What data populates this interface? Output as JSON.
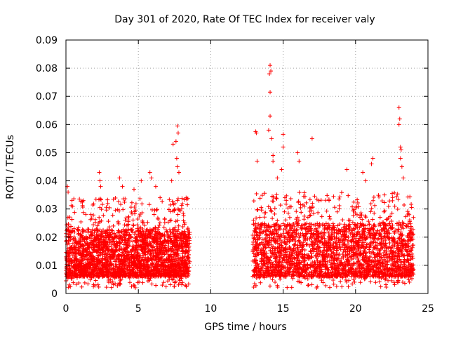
{
  "chart_data": {
    "type": "scatter",
    "title": "Day 301 of 2020, Rate Of TEC Index for receiver valy",
    "xlabel": "GPS time / hours",
    "ylabel": "ROTI / TECUs",
    "xlim": [
      0,
      25
    ],
    "ylim": [
      0,
      0.09
    ],
    "grid": true,
    "marker": "+",
    "color": "#ff0000",
    "x_ticks": [
      0,
      5,
      10,
      15,
      20,
      25
    ],
    "x_tick_labels": [
      "0",
      "5",
      "10",
      "15",
      "20",
      "25"
    ],
    "y_ticks": [
      0,
      0.01,
      0.02,
      0.03,
      0.04,
      0.05,
      0.06,
      0.07,
      0.08,
      0.09
    ],
    "y_tick_labels": [
      "0",
      "0.01",
      "0.02",
      "0.03",
      "0.04",
      "0.05",
      "0.06",
      "0.07",
      "0.08",
      "0.09"
    ],
    "data_gap_hours": [
      8.6,
      12.9
    ],
    "segments": [
      {
        "x_start": 0.0,
        "x_end": 8.55,
        "typical_low": 0.006,
        "typical_high": 0.022
      },
      {
        "x_start": 12.9,
        "x_end": 24.0,
        "typical_low": 0.006,
        "typical_high": 0.024
      }
    ],
    "notable_points": [
      {
        "x": 0.1,
        "y": 0.038
      },
      {
        "x": 0.15,
        "y": 0.036
      },
      {
        "x": 1.2,
        "y": 0.033
      },
      {
        "x": 2.3,
        "y": 0.043
      },
      {
        "x": 2.35,
        "y": 0.04
      },
      {
        "x": 2.4,
        "y": 0.038
      },
      {
        "x": 3.7,
        "y": 0.041
      },
      {
        "x": 3.9,
        "y": 0.038
      },
      {
        "x": 4.7,
        "y": 0.037
      },
      {
        "x": 5.2,
        "y": 0.04
      },
      {
        "x": 5.8,
        "y": 0.043
      },
      {
        "x": 5.9,
        "y": 0.041
      },
      {
        "x": 6.2,
        "y": 0.038
      },
      {
        "x": 6.5,
        "y": 0.034
      },
      {
        "x": 7.3,
        "y": 0.04
      },
      {
        "x": 7.4,
        "y": 0.053
      },
      {
        "x": 7.6,
        "y": 0.054
      },
      {
        "x": 7.7,
        "y": 0.0595
      },
      {
        "x": 7.75,
        "y": 0.057
      },
      {
        "x": 7.65,
        "y": 0.048
      },
      {
        "x": 7.7,
        "y": 0.045
      },
      {
        "x": 7.8,
        "y": 0.043
      },
      {
        "x": 8.3,
        "y": 0.034
      },
      {
        "x": 13.1,
        "y": 0.0575
      },
      {
        "x": 13.15,
        "y": 0.057
      },
      {
        "x": 13.2,
        "y": 0.047
      },
      {
        "x": 14.1,
        "y": 0.081
      },
      {
        "x": 14.15,
        "y": 0.079
      },
      {
        "x": 14.05,
        "y": 0.078
      },
      {
        "x": 14.1,
        "y": 0.0715
      },
      {
        "x": 14.1,
        "y": 0.063
      },
      {
        "x": 14.0,
        "y": 0.058
      },
      {
        "x": 14.2,
        "y": 0.055
      },
      {
        "x": 14.3,
        "y": 0.049
      },
      {
        "x": 14.3,
        "y": 0.047
      },
      {
        "x": 14.6,
        "y": 0.041
      },
      {
        "x": 14.9,
        "y": 0.044
      },
      {
        "x": 15.0,
        "y": 0.052
      },
      {
        "x": 15.0,
        "y": 0.0565
      },
      {
        "x": 16.0,
        "y": 0.05
      },
      {
        "x": 16.1,
        "y": 0.047
      },
      {
        "x": 17.0,
        "y": 0.055
      },
      {
        "x": 19.4,
        "y": 0.044
      },
      {
        "x": 20.5,
        "y": 0.043
      },
      {
        "x": 20.7,
        "y": 0.04
      },
      {
        "x": 21.2,
        "y": 0.048
      },
      {
        "x": 21.1,
        "y": 0.046
      },
      {
        "x": 22.0,
        "y": 0.035
      },
      {
        "x": 23.0,
        "y": 0.066
      },
      {
        "x": 23.05,
        "y": 0.062
      },
      {
        "x": 23.0,
        "y": 0.06
      },
      {
        "x": 23.1,
        "y": 0.052
      },
      {
        "x": 23.15,
        "y": 0.051
      },
      {
        "x": 23.1,
        "y": 0.048
      },
      {
        "x": 23.2,
        "y": 0.045
      },
      {
        "x": 23.3,
        "y": 0.041
      },
      {
        "x": 23.7,
        "y": 0.028
      },
      {
        "x": 24.0,
        "y": 0.027
      }
    ]
  }
}
